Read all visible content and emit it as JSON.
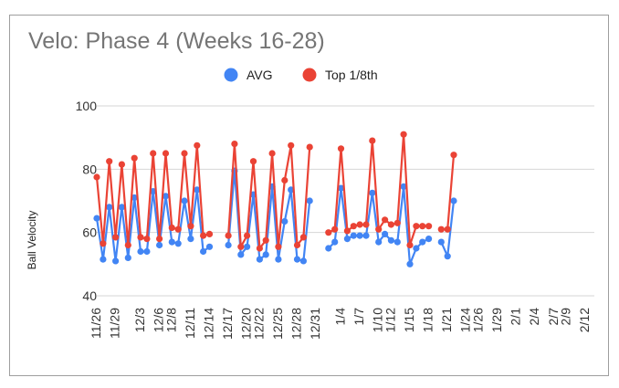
{
  "chart_data": {
    "type": "line",
    "title": "Velo: Phase 4 (Weeks 16-28)",
    "xlabel": "",
    "ylabel": "Ball Velocity",
    "ylim": [
      40,
      100
    ],
    "yticks": [
      40,
      60,
      80,
      100
    ],
    "grid": "horizontal",
    "legend_position": "top",
    "series_colors": [
      "#4285f4",
      "#ea4335"
    ],
    "categories": [
      "11/26",
      "11/27",
      "11/28",
      "11/29",
      "11/30",
      "12/1",
      "12/2",
      "12/3",
      "12/4",
      "12/5",
      "12/6",
      "12/7",
      "12/8",
      "12/9",
      "12/10",
      "12/11",
      "12/12",
      "12/13",
      "12/14",
      "12/15",
      "12/16",
      "12/17",
      "12/18",
      "12/19",
      "12/20",
      "12/21",
      "12/22",
      "12/23",
      "12/24",
      "12/25",
      "12/26",
      "12/27",
      "12/28",
      "12/29",
      "12/30",
      "12/31",
      "1/1",
      "1/2",
      "1/3",
      "1/4",
      "1/5",
      "1/6",
      "1/7",
      "1/8",
      "1/9",
      "1/10",
      "1/11",
      "1/12",
      "1/13",
      "1/14",
      "1/15",
      "1/16",
      "1/17",
      "1/18",
      "1/19",
      "1/20",
      "1/21",
      "1/22",
      "1/23",
      "1/24",
      "1/25",
      "1/26",
      "1/27",
      "1/28",
      "1/29",
      "1/30",
      "1/31",
      "2/1",
      "2/2",
      "2/3",
      "2/4",
      "2/5",
      "2/6",
      "2/7",
      "2/8",
      "2/9",
      "2/10",
      "2/11",
      "2/12",
      "2/13"
    ],
    "tick_labels": [
      "11/26",
      "11/29",
      "12/3",
      "12/6",
      "12/8",
      "12/11",
      "12/14",
      "12/17",
      "12/20",
      "12/22",
      "12/25",
      "12/28",
      "12/31",
      "1/4",
      "1/7",
      "1/10",
      "1/12",
      "1/15",
      "1/18",
      "1/21",
      "1/24",
      "1/26",
      "1/29",
      "2/1",
      "2/4",
      "2/7",
      "2/9",
      "2/12"
    ],
    "series": [
      {
        "name": "AVG",
        "values": [
          64.5,
          51.5,
          68,
          51,
          68,
          52,
          71,
          54,
          54,
          73,
          56,
          71.5,
          57,
          56.5,
          70,
          58,
          73.5,
          54,
          55.5,
          null,
          null,
          56,
          79.5,
          53,
          55.5,
          72,
          51.5,
          53,
          74.5,
          51.5,
          63.5,
          73.5,
          51.5,
          51,
          70,
          null,
          null,
          55,
          57,
          74,
          58,
          59,
          59,
          59,
          72.5,
          57,
          59.5,
          57.5,
          57,
          74.5,
          50,
          55,
          57,
          58,
          null,
          57,
          52.5,
          70,
          null,
          null,
          null,
          null,
          null,
          null,
          null,
          null,
          null,
          null,
          null,
          null,
          null,
          null,
          null,
          null,
          null,
          null,
          null,
          null,
          null,
          null
        ]
      },
      {
        "name": "Top 1/8th",
        "values": [
          77.5,
          56.5,
          82.5,
          58.5,
          81.5,
          56,
          83.5,
          58.5,
          58,
          85,
          58,
          85,
          61.5,
          61,
          85,
          62,
          87.5,
          59,
          59.5,
          null,
          null,
          59,
          88,
          55.5,
          59,
          82.5,
          55,
          57.5,
          85,
          55.5,
          76.5,
          87.5,
          56,
          58.5,
          87,
          null,
          null,
          60,
          61,
          86.5,
          60.5,
          62,
          62.5,
          62.5,
          89,
          61,
          64,
          62.5,
          63,
          91,
          56,
          62,
          62,
          62,
          null,
          61,
          61,
          84.5,
          null,
          null,
          null,
          null,
          null,
          null,
          null,
          null,
          null,
          null,
          null,
          null,
          null,
          null,
          null,
          null,
          null,
          null,
          null,
          null,
          null,
          null
        ]
      }
    ]
  }
}
